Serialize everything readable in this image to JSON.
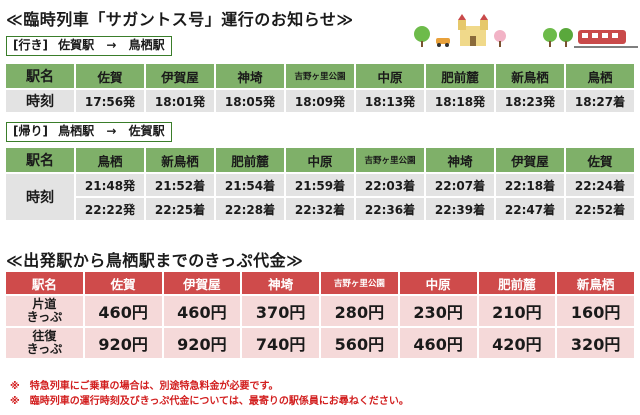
{
  "title": "≪臨時列車「サガントス号」運行のお知らせ≫",
  "outbound": {
    "label_bracket": "[行き]",
    "from": "佐賀駅",
    "arrow": "→",
    "to": "鳥栖駅",
    "header_label": "駅名",
    "time_label": "時刻",
    "stations": [
      "佐賀",
      "伊賀屋",
      "神埼",
      "吉野ヶ里公園",
      "中原",
      "肥前麓",
      "新鳥栖",
      "鳥栖"
    ],
    "times": [
      "17:56発",
      "18:01発",
      "18:05発",
      "18:09発",
      "18:13発",
      "18:18発",
      "18:23発",
      "18:27着"
    ]
  },
  "return": {
    "label_bracket": "[帰り]",
    "from": "鳥栖駅",
    "arrow": "→",
    "to": "佐賀駅",
    "header_label": "駅名",
    "time_label": "時刻",
    "stations": [
      "鳥栖",
      "新鳥栖",
      "肥前麓",
      "中原",
      "吉野ヶ里公園",
      "神埼",
      "伊賀屋",
      "佐賀"
    ],
    "times_row1": [
      "21:48発",
      "21:52着",
      "21:54着",
      "21:59着",
      "22:03着",
      "22:07着",
      "22:18着",
      "22:24着"
    ],
    "times_row2": [
      "22:22発",
      "22:25着",
      "22:28着",
      "22:32着",
      "22:36着",
      "22:39着",
      "22:47着",
      "22:52着"
    ]
  },
  "fare": {
    "title": "≪出発駅から鳥栖駅までのきっぷ代金≫",
    "header_label": "駅名",
    "stations": [
      "佐賀",
      "伊賀屋",
      "神埼",
      "吉野ヶ里公園",
      "中原",
      "肥前麓",
      "新鳥栖"
    ],
    "oneway_label_1": "片道",
    "oneway_label_2": "きっぷ",
    "oneway": [
      "460円",
      "460円",
      "370円",
      "280円",
      "230円",
      "210円",
      "160円"
    ],
    "round_label_1": "往復",
    "round_label_2": "きっぷ",
    "round": [
      "920円",
      "920円",
      "740円",
      "560円",
      "460円",
      "420円",
      "320円"
    ]
  },
  "notes": [
    "※　特急列車にご乗車の場合は、別途特急料金が必要です。",
    "※　臨時列車の運行時刻及びきっぷ代金については、最寄りの駅係員にお尋ねください。"
  ],
  "colors": {
    "green": "#7fb069",
    "red": "#cf4b4b",
    "note_red": "#d21f1f"
  },
  "decoration_icons": [
    "tree-icon",
    "car-icon",
    "castle-icon",
    "tree-icon",
    "train-icon"
  ]
}
